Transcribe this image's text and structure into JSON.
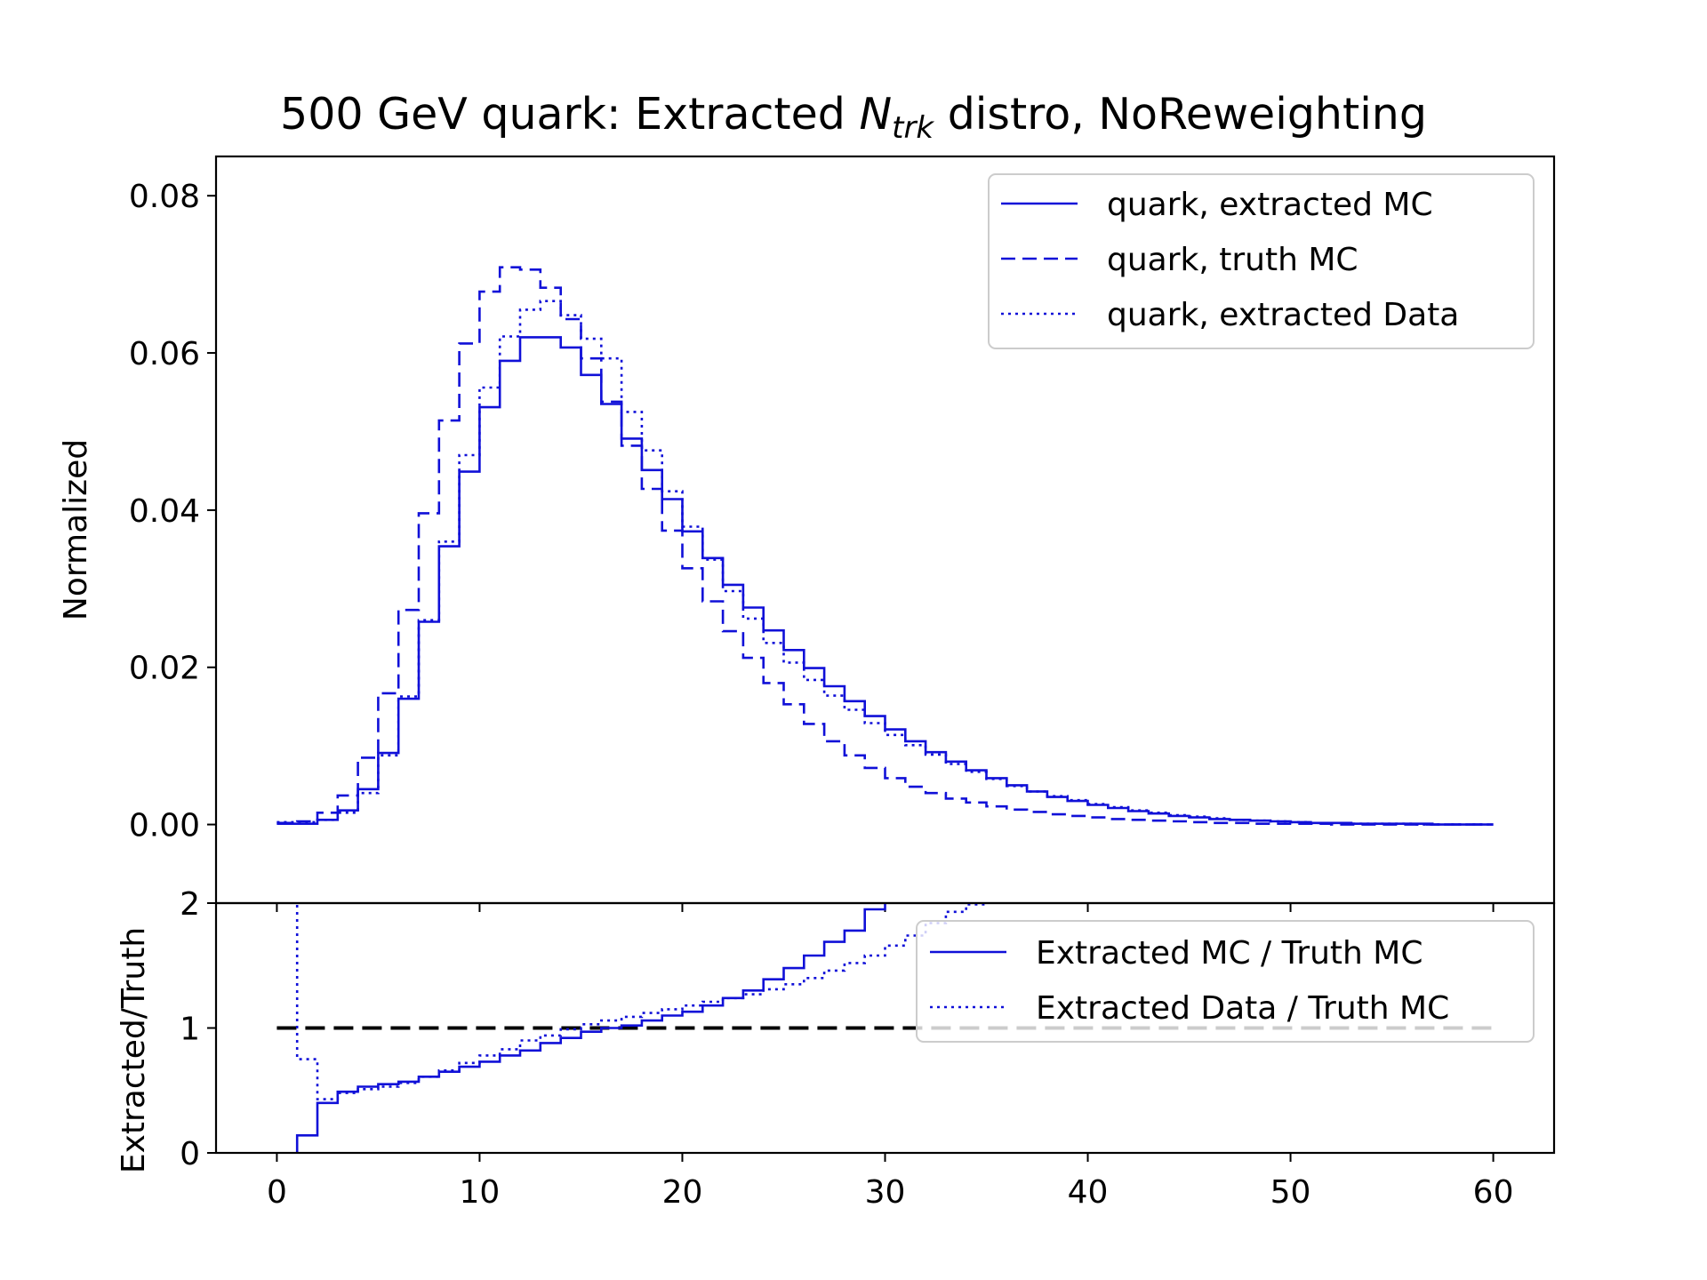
{
  "title": {
    "prefix": "500 GeV quark: Extracted ",
    "var_main": "N",
    "var_sub": "trk",
    "suffix": " distro, NoReweighting"
  },
  "colors": {
    "series": "#1010d8",
    "reference_line": "#000000",
    "axes": "#000000"
  },
  "chart_data": [
    {
      "type": "line",
      "drawstyle": "steps-post",
      "ylabel": "Normalized",
      "xlim": [
        -3,
        63
      ],
      "ylim": [
        -0.01,
        0.085
      ],
      "xticks": [
        0,
        10,
        20,
        30,
        40,
        50,
        60
      ],
      "yticks": [
        0.0,
        0.02,
        0.04,
        0.06,
        0.08
      ],
      "ytick_labels": [
        "0.00",
        "0.02",
        "0.04",
        "0.06",
        "0.08"
      ],
      "legend_position": "upper right",
      "x_edges": [
        0,
        1,
        2,
        3,
        4,
        5,
        6,
        7,
        8,
        9,
        10,
        11,
        12,
        13,
        14,
        15,
        16,
        17,
        18,
        19,
        20,
        21,
        22,
        23,
        24,
        25,
        26,
        27,
        28,
        29,
        30,
        31,
        32,
        33,
        34,
        35,
        36,
        37,
        38,
        39,
        40,
        41,
        42,
        43,
        44,
        45,
        46,
        47,
        48,
        49,
        50,
        51,
        52,
        53,
        54,
        55,
        56,
        57,
        58,
        59,
        60
      ],
      "series": [
        {
          "name": "quark, extracted MC",
          "linestyle": "solid",
          "values": [
            0.0001,
            0.0001,
            0.0006,
            0.0018,
            0.0045,
            0.0091,
            0.016,
            0.0258,
            0.0354,
            0.0449,
            0.0531,
            0.059,
            0.062,
            0.062,
            0.0607,
            0.0572,
            0.0535,
            0.0491,
            0.0451,
            0.0414,
            0.0373,
            0.0339,
            0.0305,
            0.0276,
            0.0247,
            0.0222,
            0.0199,
            0.0176,
            0.0157,
            0.0138,
            0.0121,
            0.0106,
            0.0092,
            0.008,
            0.0069,
            0.0059,
            0.005,
            0.0042,
            0.0035,
            0.003,
            0.0025,
            0.0021,
            0.0017,
            0.0014,
            0.0011,
            0.0009,
            0.0007,
            0.0006,
            0.0005,
            0.0004,
            0.0003,
            0.0002,
            0.0002,
            0.0001,
            0.0001,
            0.0001,
            0.0001,
            0.0,
            0.0,
            0.0
          ]
        },
        {
          "name": "quark, truth MC",
          "linestyle": "dashed",
          "values": [
            0.0002,
            0.0004,
            0.0015,
            0.0037,
            0.0085,
            0.0167,
            0.0273,
            0.0396,
            0.0514,
            0.0612,
            0.0678,
            0.0709,
            0.0706,
            0.0683,
            0.0643,
            0.0593,
            0.0538,
            0.0482,
            0.0427,
            0.0374,
            0.0326,
            0.0284,
            0.0246,
            0.0212,
            0.018,
            0.0153,
            0.0128,
            0.0106,
            0.0088,
            0.0072,
            0.0059,
            0.0048,
            0.004,
            0.0033,
            0.0028,
            0.0023,
            0.0019,
            0.0016,
            0.0013,
            0.0011,
            0.0009,
            0.0007,
            0.0006,
            0.0005,
            0.0004,
            0.0003,
            0.0002,
            0.0002,
            0.0001,
            0.0001,
            0.0001,
            0.0001,
            0.0,
            0.0,
            0.0,
            0.0,
            0.0,
            0.0,
            0.0,
            0.0
          ]
        },
        {
          "name": "quark, extracted Data",
          "linestyle": "dotted",
          "values": [
            0.0003,
            0.0003,
            0.0006,
            0.0015,
            0.004,
            0.0088,
            0.0163,
            0.026,
            0.036,
            0.047,
            0.0556,
            0.0621,
            0.0655,
            0.0666,
            0.0648,
            0.0618,
            0.0593,
            0.0525,
            0.0476,
            0.0424,
            0.0379,
            0.0337,
            0.0297,
            0.0262,
            0.0231,
            0.0206,
            0.0184,
            0.0164,
            0.0146,
            0.0129,
            0.0114,
            0.0101,
            0.0089,
            0.0077,
            0.0067,
            0.0058,
            0.0049,
            0.0042,
            0.0036,
            0.0031,
            0.0026,
            0.0022,
            0.0018,
            0.0015,
            0.0012,
            0.001,
            0.0008,
            0.0006,
            0.0005,
            0.0004,
            0.0003,
            0.0002,
            0.0002,
            0.0001,
            0.0001,
            0.0001,
            0.0,
            0.0,
            0.0,
            0.0
          ]
        }
      ]
    },
    {
      "type": "line",
      "drawstyle": "steps-post",
      "ylabel": "Extracted/Truth",
      "xlim": [
        -3,
        63
      ],
      "ylim": [
        0,
        2
      ],
      "xticks": [
        0,
        10,
        20,
        30,
        40,
        50,
        60
      ],
      "yticks": [
        0,
        1,
        2
      ],
      "reference_line_y": 1,
      "legend_position": "right",
      "series": [
        {
          "name": "Extracted MC / Truth MC",
          "linestyle": "solid",
          "x_edges": [
            1,
            2,
            3,
            4,
            5,
            6,
            7,
            8,
            9,
            10,
            11,
            12,
            13,
            14,
            15,
            16,
            17,
            18,
            19,
            20,
            21,
            22,
            23,
            24,
            25,
            26,
            27,
            28,
            29,
            30
          ],
          "values": [
            0.14,
            0.4,
            0.49,
            0.53,
            0.55,
            0.57,
            0.61,
            0.65,
            0.69,
            0.73,
            0.78,
            0.82,
            0.88,
            0.92,
            0.97,
            1.0,
            1.02,
            1.06,
            1.1,
            1.13,
            1.18,
            1.24,
            1.3,
            1.39,
            1.48,
            1.58,
            1.69,
            1.78,
            1.95,
            2.1
          ]
        },
        {
          "name": "Extracted Data / Truth MC",
          "linestyle": "dotted",
          "x_edges": [
            1,
            2,
            3,
            4,
            5,
            6,
            7,
            8,
            9,
            10,
            11,
            12,
            13,
            14,
            15,
            16,
            17,
            18,
            19,
            20,
            21,
            22,
            23,
            24,
            25,
            26,
            27,
            28,
            29,
            30,
            31,
            32,
            33,
            34,
            35
          ],
          "values": [
            0.75,
            0.43,
            0.48,
            0.51,
            0.53,
            0.56,
            0.61,
            0.66,
            0.72,
            0.78,
            0.83,
            0.9,
            0.94,
            0.99,
            1.03,
            1.06,
            1.09,
            1.12,
            1.15,
            1.18,
            1.21,
            1.24,
            1.27,
            1.31,
            1.35,
            1.4,
            1.46,
            1.52,
            1.58,
            1.66,
            1.74,
            1.84,
            1.93,
            1.99,
            2.03
          ]
        }
      ]
    }
  ]
}
